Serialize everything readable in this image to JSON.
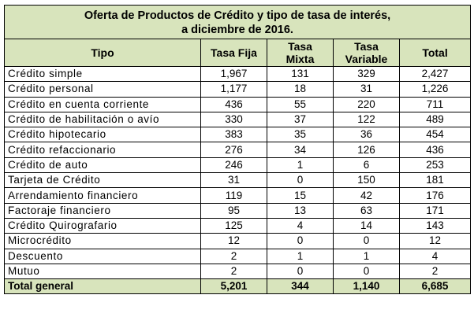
{
  "title": {
    "line1": "Oferta de Productos de Crédito y tipo de tasa de interés,",
    "line2": "a diciembre de 2016."
  },
  "headers": {
    "tipo": "Tipo",
    "fija": "Tasa Fija",
    "mixta_1": "Tasa",
    "mixta_2": "Mixta",
    "variable_1": "Tasa",
    "variable_2": "Variable",
    "total": "Total"
  },
  "rows": [
    {
      "tipo": "Crédito simple",
      "fija": "1,967",
      "mixta": "131",
      "variable": "329",
      "total": "2,427"
    },
    {
      "tipo": "Crédito personal",
      "fija": "1,177",
      "mixta": "18",
      "variable": "31",
      "total": "1,226"
    },
    {
      "tipo": "Crédito en cuenta corriente",
      "fija": "436",
      "mixta": "55",
      "variable": "220",
      "total": "711"
    },
    {
      "tipo": "Crédito de habilitación o avío",
      "fija": "330",
      "mixta": "37",
      "variable": "122",
      "total": "489"
    },
    {
      "tipo": "Crédito hipotecario",
      "fija": "383",
      "mixta": "35",
      "variable": "36",
      "total": "454"
    },
    {
      "tipo": "Crédito refaccionario",
      "fija": "276",
      "mixta": "34",
      "variable": "126",
      "total": "436"
    },
    {
      "tipo": "Crédito de auto",
      "fija": "246",
      "mixta": "1",
      "variable": "6",
      "total": "253"
    },
    {
      "tipo": "Tarjeta de Crédito",
      "fija": "31",
      "mixta": "0",
      "variable": "150",
      "total": "181"
    },
    {
      "tipo": "Arrendamiento financiero",
      "fija": "119",
      "mixta": "15",
      "variable": "42",
      "total": "176"
    },
    {
      "tipo": "Factoraje financiero",
      "fija": "95",
      "mixta": "13",
      "variable": "63",
      "total": "171"
    },
    {
      "tipo": "Crédito Quirografario",
      "fija": "125",
      "mixta": "4",
      "variable": "14",
      "total": "143"
    },
    {
      "tipo": "Microcrédito",
      "fija": "12",
      "mixta": "0",
      "variable": "0",
      "total": "12"
    },
    {
      "tipo": "Descuento",
      "fija": "2",
      "mixta": "1",
      "variable": "1",
      "total": "4"
    },
    {
      "tipo": "Mutuo",
      "fija": "2",
      "mixta": "0",
      "variable": "0",
      "total": "2"
    }
  ],
  "total_row": {
    "tipo": "Total general",
    "fija": "5,201",
    "mixta": "344",
    "variable": "1,140",
    "total": "6,685"
  },
  "colors": {
    "header_fill": "#d8e4bc",
    "border": "#000000"
  }
}
